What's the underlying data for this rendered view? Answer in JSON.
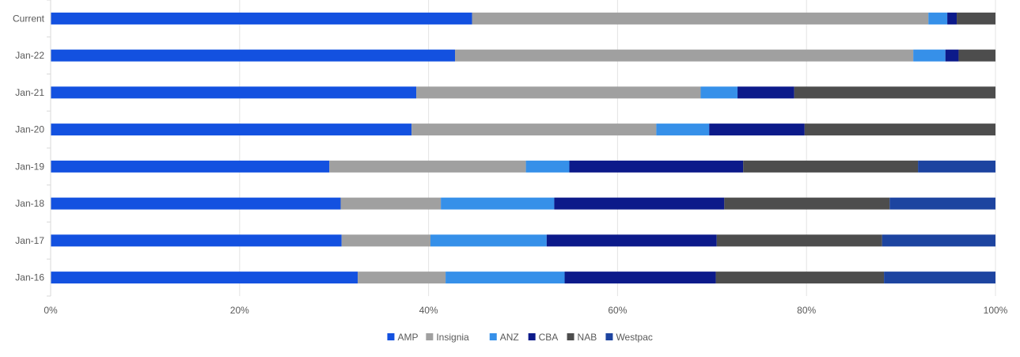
{
  "chart_data": {
    "type": "bar",
    "orientation": "horizontal",
    "stacked": "percent",
    "categories": [
      "Current",
      "Jan-22",
      "Jan-21",
      "Jan-20",
      "Jan-19",
      "Jan-18",
      "Jan-17",
      "Jan-16"
    ],
    "series": [
      {
        "name": "AMP",
        "color": "#1351e0",
        "values": [
          44.6,
          42.8,
          38.7,
          38.2,
          29.5,
          30.7,
          30.8,
          32.5
        ]
      },
      {
        "name": "Insignia",
        "color": "#a0a0a0",
        "values": [
          48.3,
          48.5,
          30.1,
          25.9,
          20.8,
          10.6,
          9.4,
          9.3
        ]
      },
      {
        "name": "ANZ",
        "color": "#3690e9",
        "values": [
          2.0,
          3.4,
          3.9,
          5.6,
          4.6,
          12.0,
          12.3,
          12.6
        ]
      },
      {
        "name": "CBA",
        "color": "#0c1a8a",
        "values": [
          1.0,
          1.4,
          6.0,
          10.1,
          18.4,
          18.0,
          18.0,
          16.0
        ]
      },
      {
        "name": "NAB",
        "color": "#4d4d4d",
        "values": [
          4.1,
          3.9,
          21.3,
          20.2,
          18.5,
          17.5,
          17.5,
          17.8
        ]
      },
      {
        "name": "Westpac",
        "color": "#1d44a0",
        "values": [
          0,
          0,
          0,
          0,
          8.2,
          11.2,
          12.0,
          11.8
        ]
      }
    ],
    "xlim": [
      0,
      100
    ],
    "xticks": [
      "0%",
      "20%",
      "40%",
      "60%",
      "80%",
      "100%"
    ],
    "grid": true,
    "legend_position": "bottom"
  }
}
